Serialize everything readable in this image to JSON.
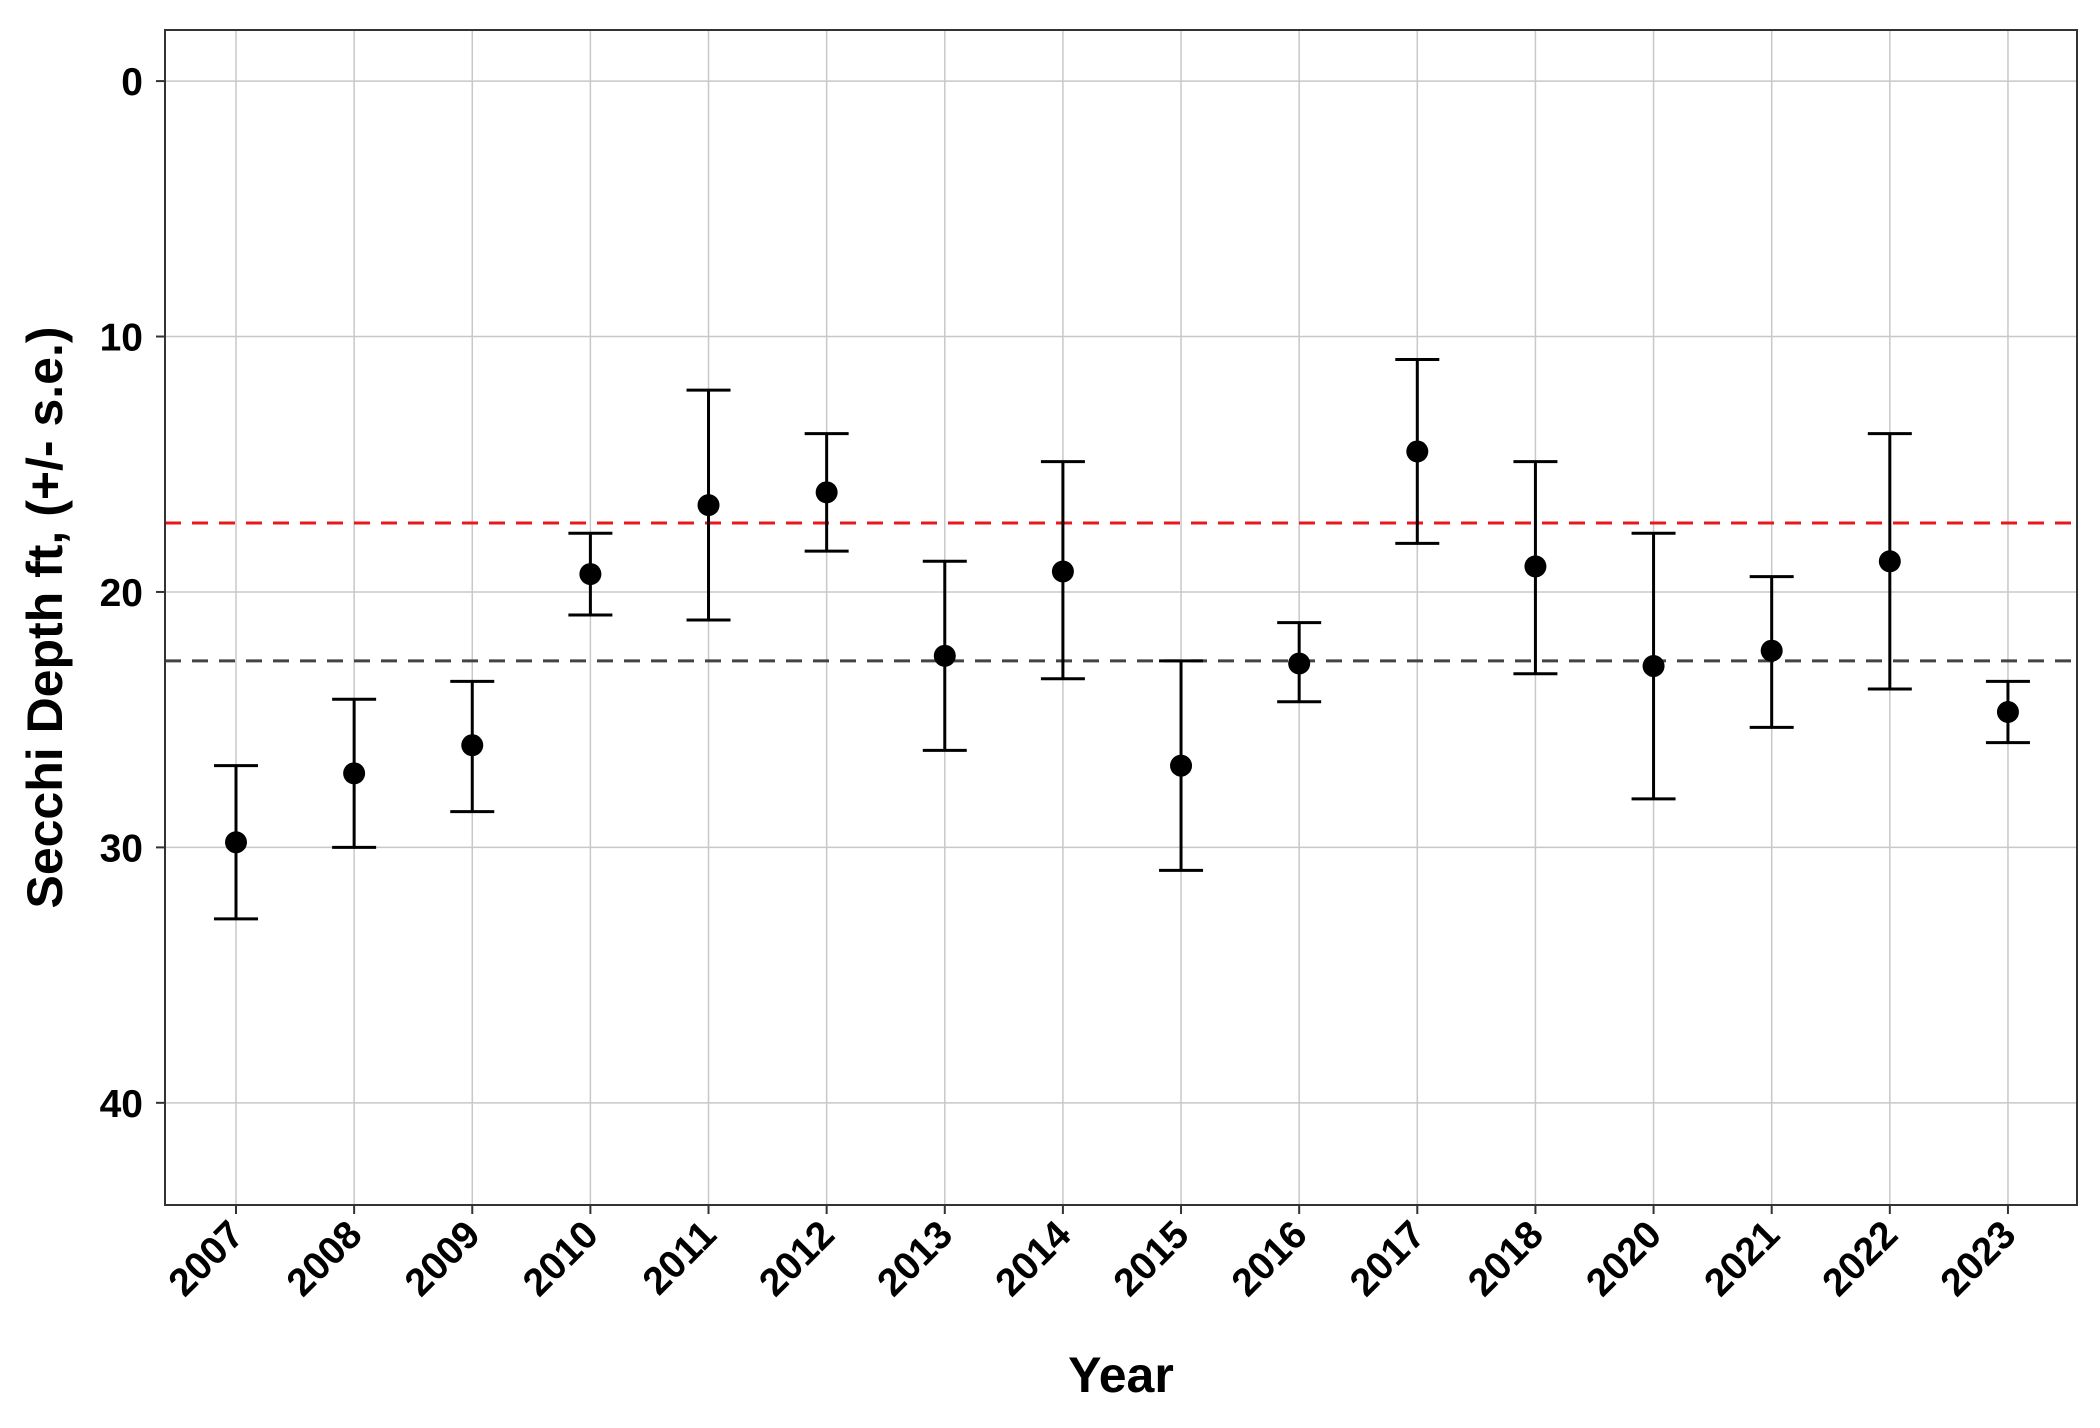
{
  "chart_data": {
    "type": "scatter",
    "title": "",
    "xlabel": "Year",
    "ylabel": "Secchi Depth ft, (+/- s.e.)",
    "categories": [
      "2007",
      "2008",
      "2009",
      "2010",
      "2011",
      "2012",
      "2013",
      "2014",
      "2015",
      "2016",
      "2017",
      "2018",
      "2020",
      "2021",
      "2022",
      "2023"
    ],
    "y_reversed": true,
    "ylim": [
      -2,
      44
    ],
    "yticks": [
      0,
      10,
      20,
      30,
      40
    ],
    "grid": true,
    "legend": "none",
    "series": [
      {
        "values": [
          29.8,
          27.1,
          26.0,
          19.3,
          16.6,
          16.1,
          22.5,
          19.2,
          26.8,
          22.8,
          14.5,
          19.0,
          22.9,
          22.3,
          18.8,
          24.7
        ],
        "lower": [
          26.8,
          24.2,
          23.5,
          17.7,
          12.1,
          13.8,
          18.8,
          14.9,
          22.7,
          21.2,
          10.9,
          14.9,
          17.7,
          19.4,
          13.8,
          23.5
        ],
        "upper": [
          32.8,
          30.0,
          28.6,
          20.9,
          21.1,
          18.4,
          26.2,
          23.4,
          30.9,
          24.3,
          18.1,
          23.2,
          28.1,
          25.3,
          23.8,
          25.9
        ],
        "color": "#000000"
      }
    ],
    "reference_lines": [
      {
        "y": 17.3,
        "color": "#e8191c",
        "style": "dashed"
      },
      {
        "y": 22.7,
        "color": "#444444",
        "style": "dashed"
      }
    ]
  }
}
